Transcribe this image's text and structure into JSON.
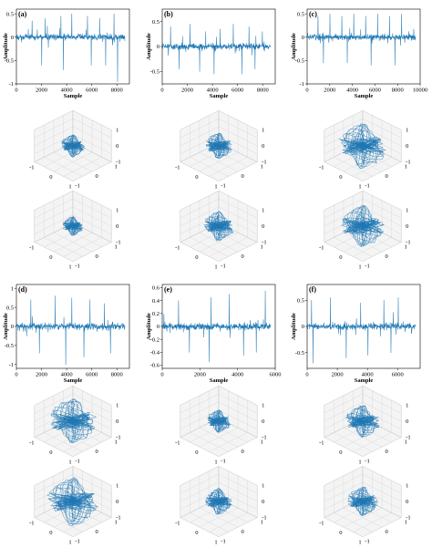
{
  "chart_data": [
    {
      "id": "a",
      "type": "line",
      "panel_label": "(a)",
      "xlabel": "Sample",
      "ylabel": "Amplitude",
      "xlim": [
        0,
        9000
      ],
      "ylim": [
        -1,
        0.6
      ],
      "xticks": [
        0,
        2000,
        4000,
        6000,
        8000
      ],
      "yticks": [
        0.5,
        0,
        -0.5,
        -1
      ],
      "color": "#1f77b4",
      "spikes": [
        {
          "x": 1300,
          "y": 0.35
        },
        {
          "x": 2400,
          "y": 0.4
        },
        {
          "x": 3700,
          "y": 0.45
        },
        {
          "x": 4600,
          "y": 0.5
        },
        {
          "x": 5900,
          "y": 0.45
        },
        {
          "x": 6900,
          "y": 0.4
        },
        {
          "x": 8100,
          "y": 0.5
        },
        {
          "x": 2100,
          "y": -0.6
        },
        {
          "x": 3900,
          "y": -0.7
        },
        {
          "x": 6200,
          "y": -0.6
        },
        {
          "x": 7400,
          "y": -0.6
        },
        {
          "x": 8400,
          "y": -0.95
        }
      ]
    },
    {
      "id": "b",
      "type": "line",
      "panel_label": "(b)",
      "xlabel": "Sample",
      "ylabel": "Amplitude",
      "xlim": [
        0,
        9000
      ],
      "ylim": [
        -0.75,
        0.75
      ],
      "xticks": [
        0,
        2000,
        4000,
        6000,
        8000
      ],
      "yticks": [
        0.5,
        0,
        -0.5
      ],
      "color": "#1f77b4",
      "spikes": [
        {
          "x": 700,
          "y": 0.4
        },
        {
          "x": 2300,
          "y": 0.45
        },
        {
          "x": 3600,
          "y": 0.3
        },
        {
          "x": 4800,
          "y": 0.35
        },
        {
          "x": 5900,
          "y": 0.45
        },
        {
          "x": 7200,
          "y": 0.4
        },
        {
          "x": 8300,
          "y": 0.3
        },
        {
          "x": 1400,
          "y": -0.45
        },
        {
          "x": 3100,
          "y": -0.5
        },
        {
          "x": 4300,
          "y": -0.55
        },
        {
          "x": 6600,
          "y": -0.55
        },
        {
          "x": 7700,
          "y": -0.45
        }
      ]
    },
    {
      "id": "c",
      "type": "line",
      "panel_label": "(c)",
      "xlabel": "Sample",
      "ylabel": "Amplitude",
      "xlim": [
        0,
        10000
      ],
      "ylim": [
        -1,
        0.6
      ],
      "xticks": [
        0,
        2000,
        4000,
        6000,
        8000,
        10000
      ],
      "yticks": [
        0.5,
        0,
        -0.5,
        -1
      ],
      "color": "#1f77b4",
      "spikes": [
        {
          "x": 1000,
          "y": 0.45
        },
        {
          "x": 2100,
          "y": 0.5
        },
        {
          "x": 3200,
          "y": 0.45
        },
        {
          "x": 4300,
          "y": 0.5
        },
        {
          "x": 5400,
          "y": 0.45
        },
        {
          "x": 6500,
          "y": 0.5
        },
        {
          "x": 7600,
          "y": 0.45
        },
        {
          "x": 8700,
          "y": 0.5
        },
        {
          "x": 1500,
          "y": -0.55
        },
        {
          "x": 3700,
          "y": -0.55
        },
        {
          "x": 5900,
          "y": -0.6
        },
        {
          "x": 8100,
          "y": -0.6
        }
      ]
    },
    {
      "id": "d",
      "type": "line",
      "panel_label": "(d)",
      "xlabel": "Sample",
      "ylabel": "Amplitude",
      "xlim": [
        0,
        9000
      ],
      "ylim": [
        -1.1,
        1.1
      ],
      "xticks": [
        0,
        2000,
        4000,
        6000,
        8000
      ],
      "yticks": [
        1,
        0.5,
        0,
        -0.5,
        -1
      ],
      "color": "#1f77b4",
      "spikes": [
        {
          "x": 1200,
          "y": 0.7
        },
        {
          "x": 3200,
          "y": 0.8
        },
        {
          "x": 4600,
          "y": 0.75
        },
        {
          "x": 6100,
          "y": 0.7
        },
        {
          "x": 7300,
          "y": 0.6
        },
        {
          "x": 1900,
          "y": -0.7
        },
        {
          "x": 4100,
          "y": -1.0
        },
        {
          "x": 5600,
          "y": -0.8
        },
        {
          "x": 7800,
          "y": -0.7
        }
      ]
    },
    {
      "id": "e",
      "type": "line",
      "panel_label": "(e)",
      "xlabel": "Sample",
      "ylabel": "Amplitude",
      "xlim": [
        0,
        6000
      ],
      "ylim": [
        -0.65,
        0.65
      ],
      "xticks": [
        0,
        2000,
        4000,
        6000
      ],
      "yticks": [
        0.6,
        0.4,
        0.2,
        0,
        -0.2,
        -0.4,
        -0.6
      ],
      "color": "#1f77b4",
      "spikes": [
        {
          "x": 900,
          "y": 0.4
        },
        {
          "x": 2700,
          "y": 0.45
        },
        {
          "x": 3700,
          "y": 0.5
        },
        {
          "x": 5700,
          "y": 0.55
        },
        {
          "x": 1500,
          "y": -0.4
        },
        {
          "x": 2600,
          "y": -0.55
        },
        {
          "x": 4500,
          "y": -0.45
        },
        {
          "x": 5200,
          "y": -0.4
        }
      ]
    },
    {
      "id": "f",
      "type": "line",
      "panel_label": "(f)",
      "xlabel": "Sample",
      "ylabel": "Amplitude",
      "xlim": [
        0,
        7500
      ],
      "ylim": [
        -0.8,
        0.8
      ],
      "xticks": [
        0,
        2000,
        4000,
        6000
      ],
      "yticks": [
        0.5,
        0,
        -0.5
      ],
      "color": "#1f77b4",
      "spikes": [
        {
          "x": 300,
          "y": 0.5
        },
        {
          "x": 1600,
          "y": 0.55
        },
        {
          "x": 3700,
          "y": 0.45
        },
        {
          "x": 5300,
          "y": 0.5
        },
        {
          "x": 6300,
          "y": 0.55
        },
        {
          "x": 400,
          "y": -0.7
        },
        {
          "x": 2700,
          "y": -0.6
        },
        {
          "x": 4200,
          "y": -0.55
        },
        {
          "x": 5800,
          "y": -0.5
        }
      ]
    }
  ],
  "phase_space_3d": {
    "type": "3d-line",
    "color": "#1f77b4",
    "tick_labels": {
      "left_x": [
        "-1",
        "0",
        "1"
      ],
      "right_x": [
        "1",
        "0",
        "-1"
      ],
      "z": [
        "1",
        "0",
        "-1"
      ]
    },
    "tight_labels": [
      "0",
      "1"
    ],
    "panels": [
      {
        "id": "a1",
        "spread": 0.35
      },
      {
        "id": "a2",
        "spread": 0.3
      },
      {
        "id": "b1",
        "spread": 0.4
      },
      {
        "id": "b2",
        "spread": 0.45
      },
      {
        "id": "c1",
        "spread": 0.7
      },
      {
        "id": "c2",
        "spread": 0.65
      },
      {
        "id": "d1",
        "spread": 0.7
      },
      {
        "id": "d2",
        "spread": 0.75
      },
      {
        "id": "e1",
        "spread": 0.35
      },
      {
        "id": "e2",
        "spread": 0.4
      },
      {
        "id": "f1",
        "spread": 0.5
      },
      {
        "id": "f2",
        "spread": 0.45
      }
    ]
  }
}
